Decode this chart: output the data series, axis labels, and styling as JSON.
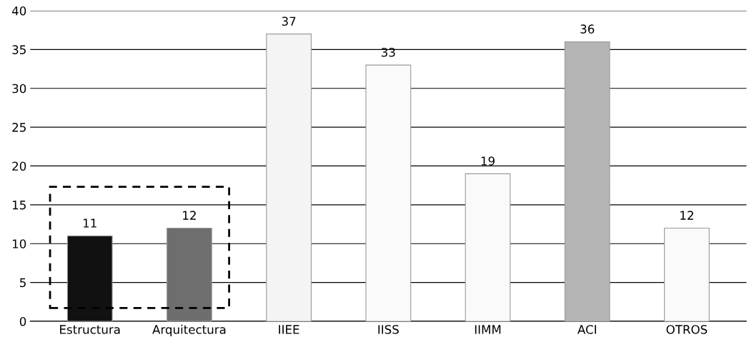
{
  "chart_data": {
    "type": "bar",
    "categories": [
      "Estructura",
      "Arquitectura",
      "IIEE",
      "IISS",
      "IIMM",
      "ACI",
      "OTROS"
    ],
    "values": [
      11,
      12,
      37,
      33,
      19,
      36,
      12
    ],
    "colors": [
      "#111111",
      "#6e6e6e",
      "#f4f4f4",
      "#fafafa",
      "#fafafa",
      "#b4b4b4",
      "#fafafa"
    ],
    "ylim": [
      0,
      40
    ],
    "yticks": [
      0,
      5,
      10,
      15,
      20,
      25,
      30,
      35,
      40
    ],
    "grid": "y",
    "data_labels": true,
    "legend": false
  }
}
